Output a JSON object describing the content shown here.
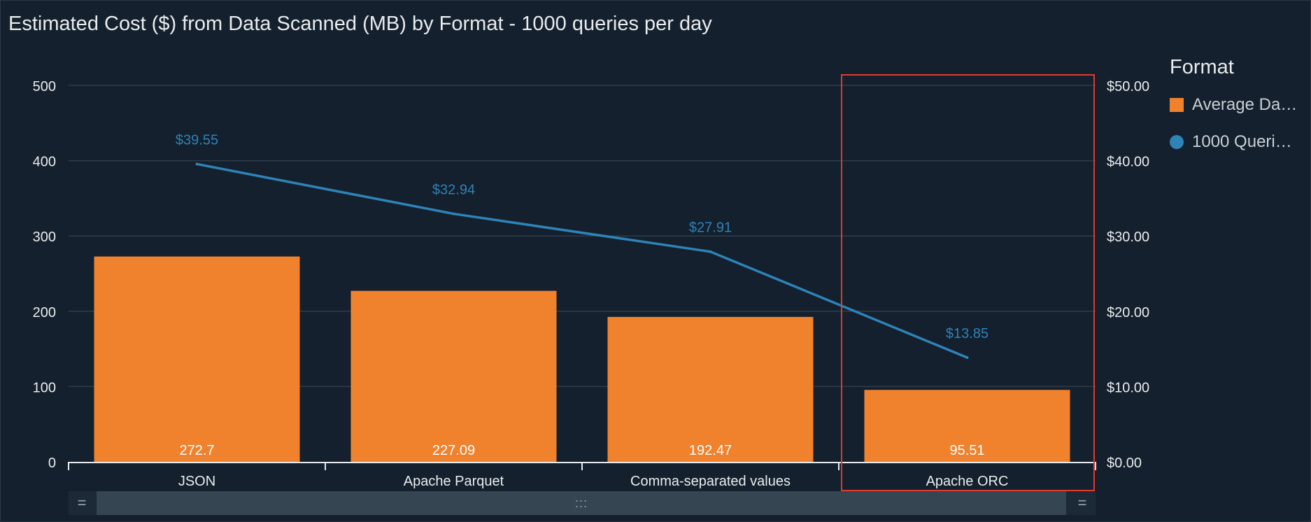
{
  "chart_data": {
    "type": "bar",
    "title": "Estimated Cost ($) from Data Scanned (MB) by Format - 1000 queries per day",
    "categories": [
      "JSON",
      "Apache Parquet",
      "Comma-separated values",
      "Apache ORC"
    ],
    "series": [
      {
        "name": "Average Da…",
        "type": "bar",
        "axis": "left",
        "color": "#f0822e",
        "values": [
          272.7,
          227.09,
          192.47,
          95.51
        ],
        "labels": [
          "272.7",
          "227.09",
          "192.47",
          "95.51"
        ]
      },
      {
        "name": "1000 Queri…",
        "type": "line",
        "axis": "right",
        "color": "#2e83b7",
        "values": [
          39.55,
          32.94,
          27.91,
          13.85
        ],
        "labels": [
          "$39.55",
          "$32.94",
          "$27.91",
          "$13.85"
        ]
      }
    ],
    "y_left": {
      "ticks": [
        "0",
        "100",
        "200",
        "300",
        "400",
        "500"
      ],
      "ylim": [
        0,
        500
      ]
    },
    "y_right": {
      "ticks": [
        "$0.00",
        "$10.00",
        "$20.00",
        "$30.00",
        "$40.00",
        "$50.00"
      ],
      "ylim": [
        0,
        50
      ]
    },
    "grid": true,
    "legend": {
      "title": "Format",
      "position": "right"
    },
    "highlight": {
      "category": "Apache ORC",
      "color": "#e03a2f"
    }
  },
  "scrollbar": {
    "left_handle": "=",
    "right_handle": "=",
    "thumb_grip": ":::"
  }
}
